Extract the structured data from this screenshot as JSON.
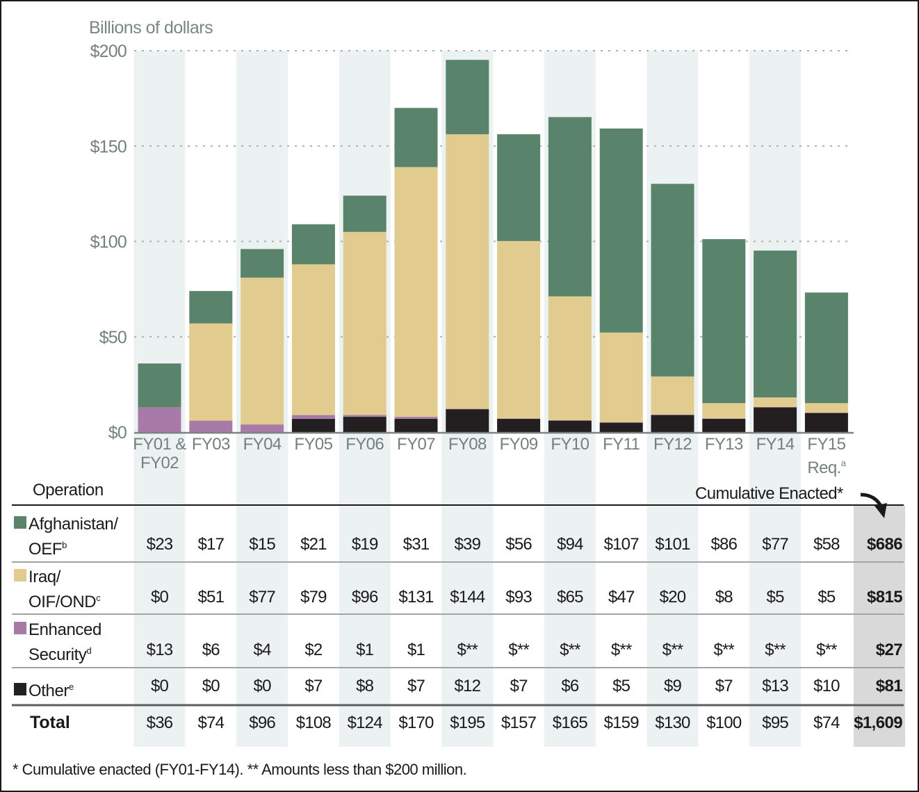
{
  "chart_data": {
    "type": "bar",
    "stacked": true,
    "ylabel": "Billions of dollars",
    "ylim": [
      0,
      200
    ],
    "yticks": [
      0,
      50,
      100,
      150,
      200
    ],
    "ytick_labels": [
      "$0",
      "$50",
      "$100",
      "$150",
      "$200"
    ],
    "grid": true,
    "categories": [
      "FY01 & FY02",
      "FY03",
      "FY04",
      "FY05",
      "FY06",
      "FY07",
      "FY08",
      "FY09",
      "FY10",
      "FY11",
      "FY12",
      "FY13",
      "FY14",
      "FY15 Req."
    ],
    "category_lines": [
      [
        "FY01 &",
        "FY02"
      ],
      [
        "FY03"
      ],
      [
        "FY04"
      ],
      [
        "FY05"
      ],
      [
        "FY06"
      ],
      [
        "FY07"
      ],
      [
        "FY08"
      ],
      [
        "FY09"
      ],
      [
        "FY10"
      ],
      [
        "FY11"
      ],
      [
        "FY12"
      ],
      [
        "FY13"
      ],
      [
        "FY14"
      ],
      [
        "FY15",
        "Req."
      ]
    ],
    "category_superscripts": [
      "",
      "",
      "",
      "",
      "",
      "",
      "",
      "",
      "",
      "",
      "",
      "",
      "",
      "a"
    ],
    "series": [
      {
        "name": "Other",
        "superscript": "e",
        "color": "#231f20",
        "values": [
          0,
          0,
          0,
          7,
          8,
          7,
          12,
          7,
          6,
          5,
          9,
          7,
          13,
          10
        ]
      },
      {
        "name": "Enhanced Security",
        "superscript": "d",
        "color": "#a87aa8",
        "values": [
          13,
          6,
          4,
          2,
          1,
          1,
          0.2,
          0.2,
          0.2,
          0.2,
          0.2,
          0.2,
          0.2,
          0.2
        ]
      },
      {
        "name": "Iraq/OIF/OND",
        "superscript": "c",
        "color": "#e2cb8f",
        "values": [
          0,
          51,
          77,
          79,
          96,
          131,
          144,
          93,
          65,
          47,
          20,
          8,
          5,
          5
        ]
      },
      {
        "name": "Afghanistan/OEF",
        "superscript": "b",
        "color": "#5a836b",
        "values": [
          23,
          17,
          15,
          21,
          19,
          31,
          39,
          56,
          94,
          107,
          101,
          86,
          77,
          58
        ]
      }
    ],
    "totals": [
      36,
      74,
      96,
      108,
      124,
      170,
      195,
      157,
      165,
      159,
      130,
      100,
      95,
      74
    ]
  },
  "table": {
    "operation_header": "Operation",
    "cumulative_header": "Cumulative Enacted*",
    "rows": [
      {
        "label_lines": [
          "Afghanistan/",
          "OEF"
        ],
        "superscript": "b",
        "color": "#5a836b",
        "cells": [
          "$23",
          "$17",
          "$15",
          "$21",
          "$19",
          "$31",
          "$39",
          "$56",
          "$94",
          "$107",
          "$101",
          "$86",
          "$77",
          "$58"
        ],
        "cumulative": "$686"
      },
      {
        "label_lines": [
          "Iraq/",
          "OIF/OND"
        ],
        "superscript": "c",
        "color": "#e2cb8f",
        "cells": [
          "$0",
          "$51",
          "$77",
          "$79",
          "$96",
          "$131",
          "$144",
          "$93",
          "$65",
          "$47",
          "$20",
          "$8",
          "$5",
          "$5"
        ],
        "cumulative": "$815"
      },
      {
        "label_lines": [
          "Enhanced",
          "Security"
        ],
        "superscript": "d",
        "color": "#a87aa8",
        "cells": [
          "$13",
          "$6",
          "$4",
          "$2",
          "$1",
          "$1",
          "$**",
          "$**",
          "$**",
          "$**",
          "$**",
          "$**",
          "$**",
          "$**"
        ],
        "cumulative": "$27"
      },
      {
        "label_lines": [
          "Other"
        ],
        "superscript": "e",
        "color": "#231f20",
        "cells": [
          "$0",
          "$0",
          "$0",
          "$7",
          "$8",
          "$7",
          "$12",
          "$7",
          "$6",
          "$5",
          "$9",
          "$7",
          "$13",
          "$10"
        ],
        "cumulative": "$81"
      }
    ],
    "total_row": {
      "label": "Total",
      "cells": [
        "$36",
        "$74",
        "$96",
        "$108",
        "$124",
        "$170",
        "$195",
        "$157",
        "$165",
        "$159",
        "$130",
        "$100",
        "$95",
        "$74"
      ],
      "cumulative": "$1,609"
    }
  },
  "footnote": "* Cumulative enacted (FY01-FY14).  ** Amounts less than $200 million.",
  "colors": {
    "column_shade": "#ecf1f1",
    "cumulative_shade": "#d9d9d9",
    "axis_text": "#74807f",
    "gridline": "#a8b0b0"
  }
}
